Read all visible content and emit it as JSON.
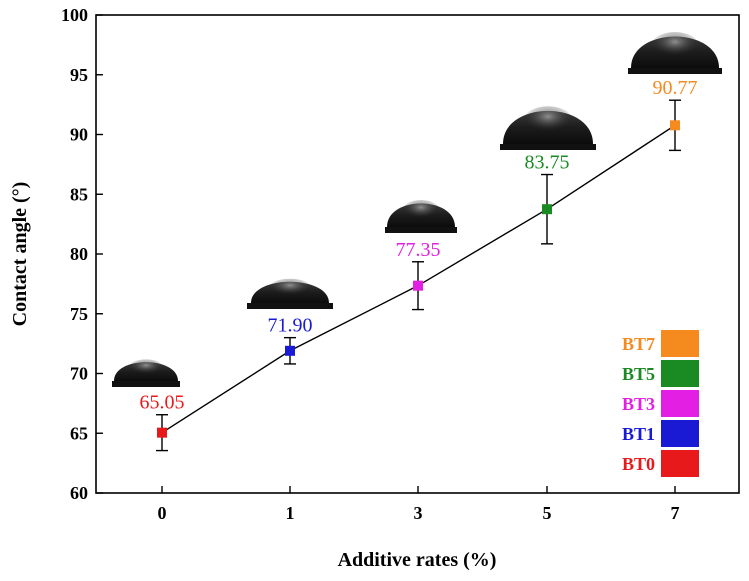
{
  "chart_data": {
    "type": "line",
    "xlabel": "Additive rates (%)",
    "ylabel": "Contact angle (°)",
    "categories": [
      "0",
      "1",
      "3",
      "5",
      "7"
    ],
    "ylim": [
      60,
      100
    ],
    "yticks": [
      60,
      65,
      70,
      75,
      80,
      85,
      90,
      95,
      100
    ],
    "line_color": "#000000",
    "points": [
      {
        "name": "BT0",
        "x": "0",
        "y": 65.05,
        "label": "65.05",
        "error": 1.5,
        "color": "#e8191b"
      },
      {
        "name": "BT1",
        "x": "1",
        "y": 71.9,
        "label": "71.90",
        "error": 1.1,
        "color": "#1a1ad4"
      },
      {
        "name": "BT3",
        "x": "3",
        "y": 77.35,
        "label": "77.35",
        "error": 2.0,
        "color": "#e21fe2"
      },
      {
        "name": "BT5",
        "x": "5",
        "y": 83.75,
        "label": "83.75",
        "error": 2.9,
        "color": "#1a8a22"
      },
      {
        "name": "BT7",
        "x": "7",
        "y": 90.77,
        "label": "90.77",
        "error": 2.1,
        "color": "#f58a1f"
      }
    ],
    "legend": {
      "placement": "bottom-right",
      "entries": [
        {
          "label": "BT7",
          "color": "#f58a1f"
        },
        {
          "label": "BT5",
          "color": "#1a8a22"
        },
        {
          "label": "BT3",
          "color": "#e21fe2"
        },
        {
          "label": "BT1",
          "color": "#1a1ad4"
        },
        {
          "label": "BT0",
          "color": "#e8191b"
        }
      ]
    },
    "grid": false,
    "droplet_images": true
  }
}
